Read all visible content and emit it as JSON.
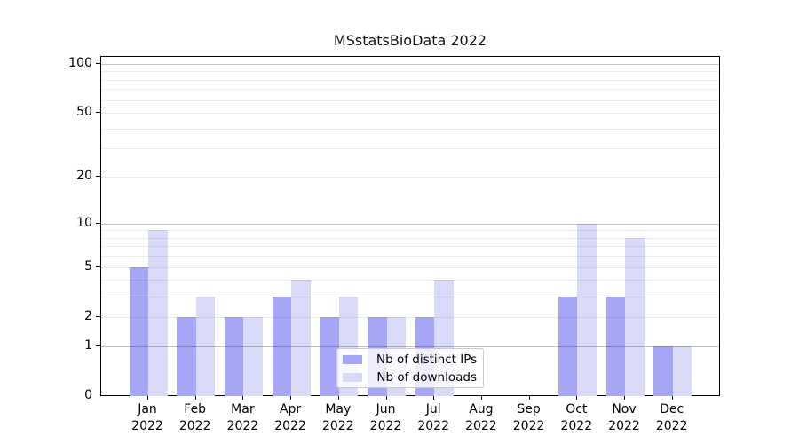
{
  "title": "MSstatsBioData 2022",
  "chart_data": {
    "type": "bar",
    "title": "MSstatsBioData 2022",
    "categories": [
      "Jan",
      "Feb",
      "Mar",
      "Apr",
      "May",
      "Jun",
      "Jul",
      "Aug",
      "Sep",
      "Oct",
      "Nov",
      "Dec"
    ],
    "x_year": "2022",
    "series": [
      {
        "name": "Nb of distinct IPs",
        "color": "#a6a6f7",
        "values": [
          5,
          2,
          2,
          3,
          2,
          2,
          2,
          0,
          0,
          3,
          3,
          1
        ]
      },
      {
        "name": "Nb of downloads",
        "color": "#d9d9f8",
        "values": [
          9,
          3,
          2,
          4,
          3,
          2,
          4,
          0,
          0,
          10,
          8,
          1
        ]
      }
    ],
    "y_scale": "log(1+v)",
    "ylim": [
      0,
      110
    ],
    "y_tick_labels": [
      "0",
      "1",
      "2",
      "5",
      "10",
      "20",
      "50",
      "100"
    ],
    "y_tick_values": [
      0,
      1,
      2,
      5,
      10,
      20,
      50,
      100
    ],
    "y_major_gridlines": [
      1,
      10,
      100
    ],
    "y_minor_gridlines": [
      2,
      3,
      4,
      5,
      6,
      7,
      8,
      9,
      20,
      30,
      40,
      50,
      60,
      70,
      80,
      90
    ],
    "legend_position": "lower center",
    "grid": true,
    "axis_color": "#000000",
    "major_grid_color": "#c2c2c2",
    "minor_grid_color": "#ececec"
  }
}
